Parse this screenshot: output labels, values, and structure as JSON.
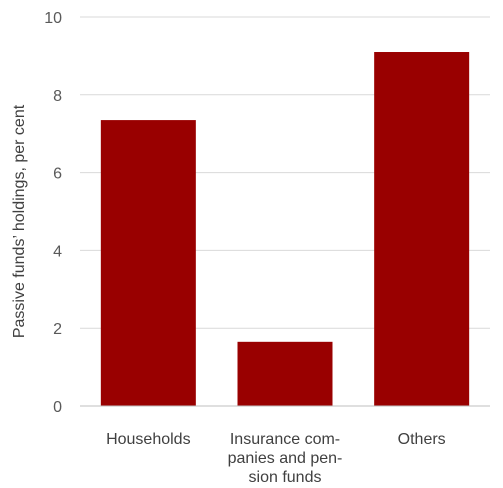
{
  "chart_data": {
    "type": "bar",
    "title": "",
    "xlabel": "",
    "ylabel": "Passive funds’ holdings, per cent",
    "categories": [
      [
        "Households"
      ],
      [
        "Insurance com-",
        "panies and pen-",
        "sion funds"
      ],
      [
        "Others"
      ]
    ],
    "values": [
      7.35,
      1.65,
      9.1
    ],
    "ylim": [
      0,
      10
    ],
    "yticks": [
      0,
      2,
      4,
      6,
      8,
      10
    ],
    "grid": true,
    "legend": "none",
    "colors": {
      "bar": "#990000",
      "grid": "#d9d9d9",
      "axis": "#bfbfbf"
    }
  }
}
